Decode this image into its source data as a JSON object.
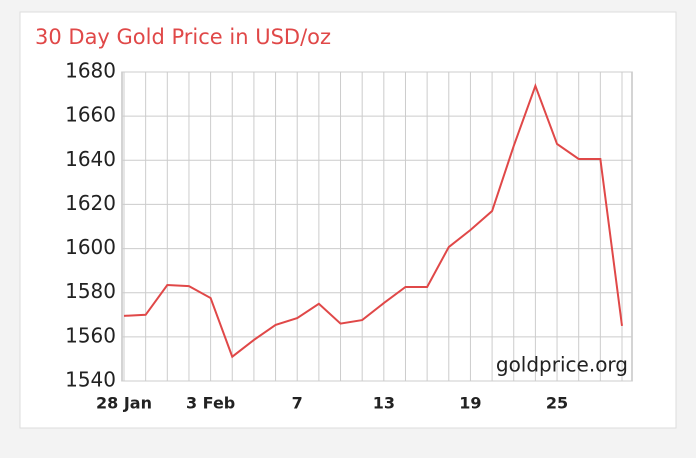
{
  "chart_data": {
    "type": "line",
    "title": "30 Day Gold Price in USD/oz",
    "annotation": "goldprice.org",
    "categories": [
      "28 Jan",
      null,
      null,
      null,
      "3 Feb",
      null,
      null,
      null,
      "7",
      null,
      null,
      null,
      "13",
      null,
      null,
      null,
      "19",
      null,
      null,
      null,
      "25",
      null,
      null,
      null
    ],
    "series": [
      {
        "name": "Gold Price",
        "color": "#e04848",
        "values": [
          1569.5,
          1570,
          1583.5,
          1583,
          1577.6,
          1551,
          1558.6,
          1565.4,
          1568.5,
          1575,
          1566,
          1567.6,
          1575.3,
          1582.6,
          1582.6,
          1600.7,
          1608.4,
          1617,
          1646.5,
          1673.7,
          1647.4,
          1640.6,
          1640.6,
          1565
        ]
      }
    ],
    "ylim": [
      1540,
      1680
    ],
    "yticks": [
      1540,
      1560,
      1580,
      1600,
      1620,
      1640,
      1660,
      1680
    ],
    "grid": true
  }
}
